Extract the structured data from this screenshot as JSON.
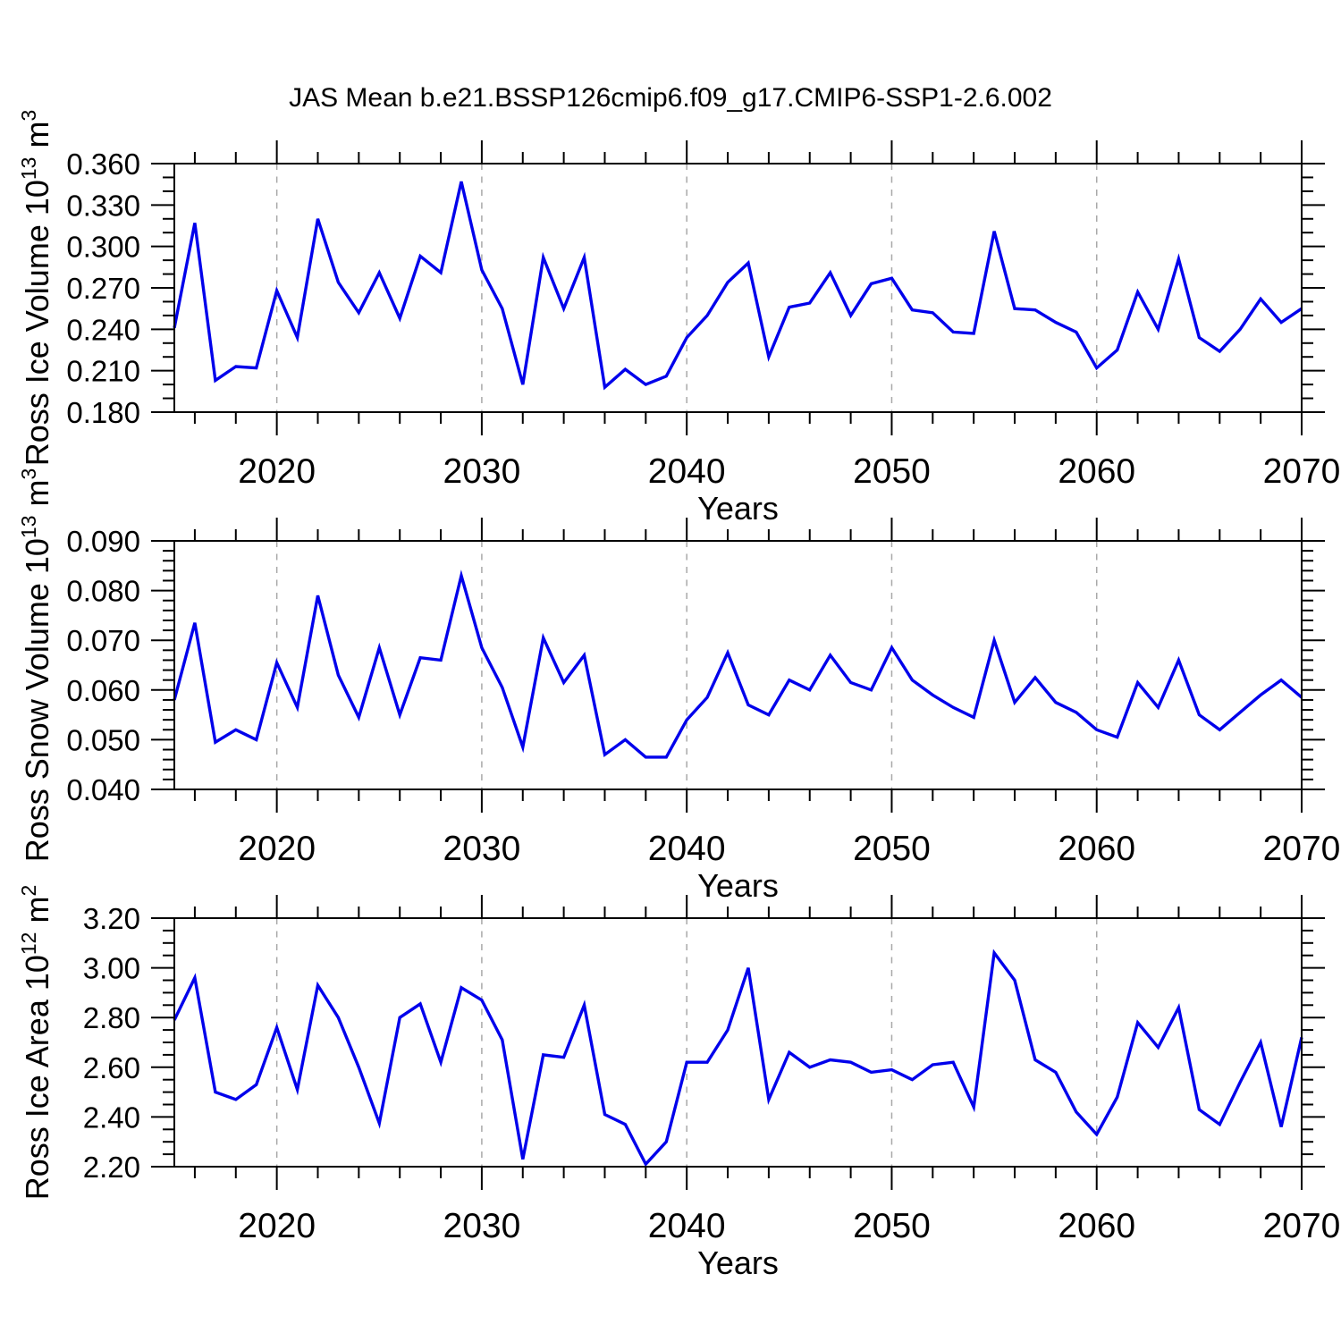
{
  "title": "JAS Mean b.e21.BSSP126cmip6.f09_g17.CMIP6-SSP1-2.6.002",
  "colors": {
    "line": "#0000EB",
    "grid": "#a8a8a8",
    "axis": "#000000"
  },
  "chart_data": [
    {
      "type": "line",
      "title": "",
      "xlabel": "Years",
      "ylabel_text": "Ross Ice Volume 10^13 m^3",
      "ylabel_rich": [
        {
          "t": "Ross Ice Volume 10"
        },
        {
          "t": "13",
          "sup": true
        },
        {
          "t": " m"
        },
        {
          "t": "3",
          "sup": true
        }
      ],
      "xlim": [
        2015,
        2070
      ],
      "ylim": [
        0.18,
        0.36
      ],
      "xtick_major_values": [
        2020,
        2030,
        2040,
        2050,
        2060,
        2070
      ],
      "xtick_labels": [
        "2020",
        "2030",
        "2040",
        "2050",
        "2060",
        "2070"
      ],
      "xtick_minor_start": 2016,
      "xtick_minor_step": 2,
      "grid_x_values": [
        2020,
        2030,
        2040,
        2050,
        2060
      ],
      "ytick_values": [
        0.18,
        0.21,
        0.24,
        0.27,
        0.3,
        0.33,
        0.36
      ],
      "ytick_labels": [
        "0.180",
        "0.210",
        "0.240",
        "0.270",
        "0.300",
        "0.330",
        "0.360"
      ],
      "ytick_minor_step": 0.01,
      "x": [
        2015,
        2016,
        2017,
        2018,
        2019,
        2020,
        2021,
        2022,
        2023,
        2024,
        2025,
        2026,
        2027,
        2028,
        2029,
        2030,
        2031,
        2032,
        2033,
        2034,
        2035,
        2036,
        2037,
        2038,
        2039,
        2040,
        2041,
        2042,
        2043,
        2044,
        2045,
        2046,
        2047,
        2048,
        2049,
        2050,
        2051,
        2052,
        2053,
        2054,
        2055,
        2056,
        2057,
        2058,
        2059,
        2060,
        2061,
        2062,
        2063,
        2064,
        2065,
        2066,
        2067,
        2068,
        2069,
        2070
      ],
      "values": [
        0.241,
        0.317,
        0.203,
        0.213,
        0.212,
        0.268,
        0.234,
        0.32,
        0.274,
        0.252,
        0.281,
        0.248,
        0.293,
        0.281,
        0.347,
        0.283,
        0.255,
        0.2,
        0.292,
        0.255,
        0.292,
        0.198,
        0.211,
        0.2,
        0.206,
        0.234,
        0.25,
        0.274,
        0.288,
        0.22,
        0.256,
        0.259,
        0.281,
        0.25,
        0.273,
        0.277,
        0.254,
        0.252,
        0.238,
        0.237,
        0.311,
        0.255,
        0.254,
        0.245,
        0.238,
        0.212,
        0.225,
        0.267,
        0.24,
        0.291,
        0.234,
        0.224,
        0.24,
        0.262,
        0.245,
        0.255
      ]
    },
    {
      "type": "line",
      "title": "",
      "xlabel": "Years",
      "ylabel_text": "Ross Snow Volume 10^13 m^3",
      "ylabel_rich": [
        {
          "t": "Ross Snow Volume 10"
        },
        {
          "t": "13",
          "sup": true
        },
        {
          "t": " m"
        },
        {
          "t": "3",
          "sup": true
        }
      ],
      "xlim": [
        2015,
        2070
      ],
      "ylim": [
        0.04,
        0.09
      ],
      "xtick_major_values": [
        2020,
        2030,
        2040,
        2050,
        2060,
        2070
      ],
      "xtick_labels": [
        "2020",
        "2030",
        "2040",
        "2050",
        "2060",
        "2070"
      ],
      "xtick_minor_start": 2016,
      "xtick_minor_step": 2,
      "grid_x_values": [
        2020,
        2030,
        2040,
        2050,
        2060
      ],
      "ytick_values": [
        0.04,
        0.05,
        0.06,
        0.07,
        0.08,
        0.09
      ],
      "ytick_labels": [
        "0.040",
        "0.050",
        "0.060",
        "0.070",
        "0.080",
        "0.090"
      ],
      "ytick_minor_step": 0.002,
      "x": [
        2015,
        2016,
        2017,
        2018,
        2019,
        2020,
        2021,
        2022,
        2023,
        2024,
        2025,
        2026,
        2027,
        2028,
        2029,
        2030,
        2031,
        2032,
        2033,
        2034,
        2035,
        2036,
        2037,
        2038,
        2039,
        2040,
        2041,
        2042,
        2043,
        2044,
        2045,
        2046,
        2047,
        2048,
        2049,
        2050,
        2051,
        2052,
        2053,
        2054,
        2055,
        2056,
        2057,
        2058,
        2059,
        2060,
        2061,
        2062,
        2063,
        2064,
        2065,
        2066,
        2067,
        2068,
        2069,
        2070
      ],
      "values": [
        0.058,
        0.0735,
        0.0495,
        0.052,
        0.05,
        0.0655,
        0.0565,
        0.079,
        0.063,
        0.0545,
        0.0685,
        0.055,
        0.0665,
        0.066,
        0.083,
        0.0685,
        0.0605,
        0.0485,
        0.0705,
        0.0615,
        0.067,
        0.047,
        0.05,
        0.0465,
        0.0465,
        0.054,
        0.0585,
        0.0675,
        0.057,
        0.055,
        0.062,
        0.06,
        0.067,
        0.0615,
        0.06,
        0.0685,
        0.062,
        0.059,
        0.0565,
        0.0545,
        0.07,
        0.0575,
        0.0625,
        0.0575,
        0.0555,
        0.052,
        0.0505,
        0.0615,
        0.0565,
        0.066,
        0.055,
        0.052,
        0.0555,
        0.059,
        0.062,
        0.0585
      ]
    },
    {
      "type": "line",
      "title": "",
      "xlabel": "Years",
      "ylabel_text": "Ross Ice Area 10^12 m^2",
      "ylabel_rich": [
        {
          "t": "Ross Ice Area 10"
        },
        {
          "t": "12",
          "sup": true
        },
        {
          "t": " m"
        },
        {
          "t": "2",
          "sup": true
        }
      ],
      "xlim": [
        2015,
        2070
      ],
      "ylim": [
        2.2,
        3.2
      ],
      "xtick_major_values": [
        2020,
        2030,
        2040,
        2050,
        2060,
        2070
      ],
      "xtick_labels": [
        "2020",
        "2030",
        "2040",
        "2050",
        "2060",
        "2070"
      ],
      "xtick_minor_start": 2016,
      "xtick_minor_step": 2,
      "grid_x_values": [
        2020,
        2030,
        2040,
        2050,
        2060
      ],
      "ytick_values": [
        2.2,
        2.4,
        2.6,
        2.8,
        3.0,
        3.2
      ],
      "ytick_labels": [
        "2.20",
        "2.40",
        "2.60",
        "2.80",
        "3.00",
        "3.20"
      ],
      "ytick_minor_step": 0.05,
      "x": [
        2015,
        2016,
        2017,
        2018,
        2019,
        2020,
        2021,
        2022,
        2023,
        2024,
        2025,
        2026,
        2027,
        2028,
        2029,
        2030,
        2031,
        2032,
        2033,
        2034,
        2035,
        2036,
        2037,
        2038,
        2039,
        2040,
        2041,
        2042,
        2043,
        2044,
        2045,
        2046,
        2047,
        2048,
        2049,
        2050,
        2051,
        2052,
        2053,
        2054,
        2055,
        2056,
        2057,
        2058,
        2059,
        2060,
        2061,
        2062,
        2063,
        2064,
        2065,
        2066,
        2067,
        2068,
        2069,
        2070
      ],
      "values": [
        2.79,
        2.96,
        2.5,
        2.47,
        2.53,
        2.76,
        2.51,
        2.93,
        2.8,
        2.6,
        2.375,
        2.8,
        2.855,
        2.62,
        2.92,
        2.87,
        2.71,
        2.23,
        2.65,
        2.64,
        2.85,
        2.41,
        2.37,
        2.21,
        2.3,
        2.62,
        2.62,
        2.75,
        3.0,
        2.47,
        2.66,
        2.6,
        2.63,
        2.62,
        2.58,
        2.59,
        2.55,
        2.61,
        2.62,
        2.44,
        3.06,
        2.95,
        2.63,
        2.58,
        2.42,
        2.33,
        2.48,
        2.78,
        2.68,
        2.84,
        2.43,
        2.37,
        2.54,
        2.7,
        2.36,
        2.72
      ]
    }
  ]
}
